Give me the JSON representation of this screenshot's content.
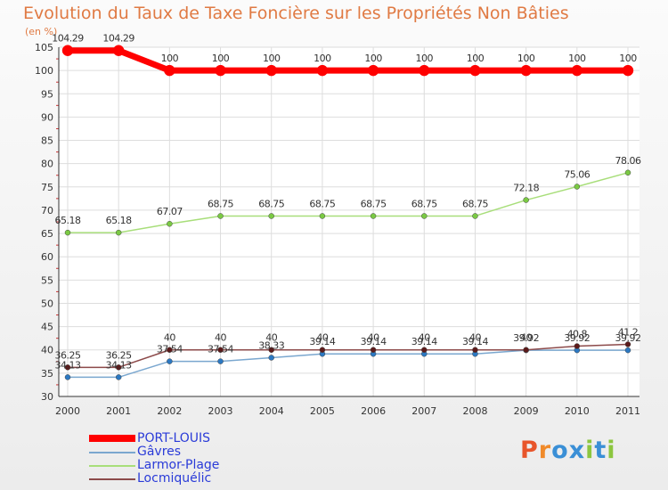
{
  "chart_data": {
    "type": "line",
    "title": "Evolution du Taux de Taxe Foncière sur les Propriétés Non Bâties",
    "ylabel": "(en %)",
    "xlabel": "",
    "x": [
      "2000",
      "2001",
      "2002",
      "2003",
      "2004",
      "2005",
      "2006",
      "2007",
      "2008",
      "2009",
      "2010",
      "2011"
    ],
    "ylim": [
      30,
      105
    ],
    "yticks": [
      30,
      35,
      40,
      45,
      50,
      55,
      60,
      65,
      70,
      75,
      80,
      85,
      90,
      95,
      100,
      105
    ],
    "series": [
      {
        "name": "PORT-LOUIS",
        "color": "#ff0000",
        "marker": "#ff0000",
        "width": 7,
        "values": [
          104.29,
          104.29,
          100,
          100,
          100,
          100,
          100,
          100,
          100,
          100,
          100,
          100
        ],
        "labels": [
          "104.29",
          "104.29",
          "100",
          "100",
          "100",
          "100",
          "100",
          "100",
          "100",
          "100",
          "100",
          "100"
        ]
      },
      {
        "name": "Gâvres",
        "color": "#7aa7cf",
        "marker": "#2b78c2",
        "width": 1.5,
        "values": [
          34.13,
          34.13,
          37.54,
          37.54,
          38.33,
          39.14,
          39.14,
          39.14,
          39.14,
          39.92,
          39.92,
          39.92
        ],
        "labels": [
          "34.13",
          "34.13",
          "37.54",
          "37.54",
          "38.33",
          "39.14",
          "39.14",
          "39.14",
          "39.14",
          "39.92",
          "39.92",
          "39.92"
        ]
      },
      {
        "name": "Larmor-Plage",
        "color": "#a8de7a",
        "marker": "#7ac943",
        "width": 1.5,
        "values": [
          65.18,
          65.18,
          67.07,
          68.75,
          68.75,
          68.75,
          68.75,
          68.75,
          68.75,
          72.18,
          75.06,
          78.06
        ],
        "labels": [
          "65.18",
          "65.18",
          "67.07",
          "68.75",
          "68.75",
          "68.75",
          "68.75",
          "68.75",
          "68.75",
          "72.18",
          "75.06",
          "78.06"
        ]
      },
      {
        "name": "Locmiquélic",
        "color": "#8c4a4a",
        "marker": "#5c1a1a",
        "width": 1.5,
        "values": [
          36.25,
          36.25,
          40,
          40,
          40,
          40,
          40,
          40,
          40,
          40,
          40.8,
          41.2
        ],
        "labels": [
          "36.25",
          "36.25",
          "40",
          "40",
          "40",
          "40",
          "40",
          "40",
          "40",
          "40",
          "40.8",
          "41.2"
        ]
      }
    ]
  },
  "legend": [
    {
      "label": "PORT-LOUIS",
      "color": "#ff0000"
    },
    {
      "label": "Gâvres",
      "color": "#7aa7cf"
    },
    {
      "label": "Larmor-Plage",
      "color": "#a8de7a"
    },
    {
      "label": "Locmiquélic",
      "color": "#8c4a4a"
    }
  ],
  "legend_text_color": "#2a3bd8",
  "logo": {
    "text": "Proxiti",
    "letters": [
      "P",
      "r",
      "o",
      "x",
      "i",
      "t",
      "i"
    ],
    "colors": [
      "#e8552b",
      "#f08a2a",
      "#3a8fd6",
      "#3a8fd6",
      "#8cc63f",
      "#3a8fd6",
      "#8cc63f"
    ]
  }
}
